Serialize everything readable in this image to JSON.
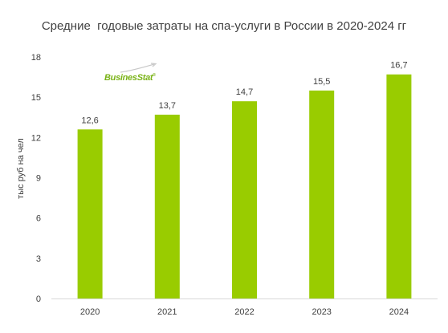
{
  "chart_data": {
    "type": "bar",
    "title": "Средние  годовые затраты на спа-услуги в России в 2020-2024 гг",
    "ylabel": "тыс руб на чел",
    "xlabel": "",
    "categories": [
      "2020",
      "2021",
      "2022",
      "2023",
      "2024"
    ],
    "values": [
      12.6,
      13.7,
      14.7,
      15.5,
      16.7
    ],
    "value_labels": [
      "12,6",
      "13,7",
      "14,7",
      "15,5",
      "16,7"
    ],
    "ylim": [
      0,
      18
    ],
    "yticks": [
      0,
      3,
      6,
      9,
      12,
      15,
      18
    ],
    "grid": false,
    "bar_color": "#99cc00"
  },
  "logo": {
    "text": "BusinesStat",
    "reg": "®",
    "color": "#7ab317"
  }
}
